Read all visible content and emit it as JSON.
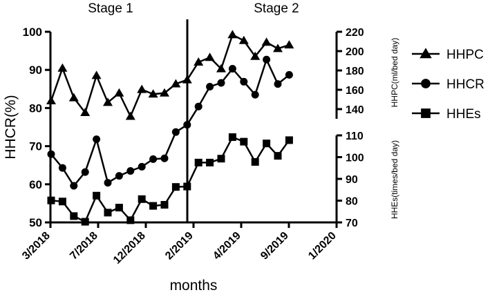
{
  "chart_data": {
    "type": "line",
    "xlabel": "months",
    "ylabel": "HHCR(%)",
    "ylabel_right_top": "HHPC(ml/bed day)",
    "ylabel_right_bottom": "HHEs(times/bed day)",
    "stages": [
      "Stage 1",
      "Stage 2"
    ],
    "x_ticks": [
      "3/2018",
      "7/2018",
      "12/2018",
      "2/2019",
      "4/2019",
      "9/2019",
      "1/2020"
    ],
    "ylim_left": [
      50,
      100
    ],
    "yticks_left": [
      50,
      60,
      70,
      80,
      90,
      100
    ],
    "ylim_right_top": [
      130,
      220
    ],
    "yticks_right_top": [
      140,
      160,
      180,
      200,
      220
    ],
    "ylim_right_bottom": [
      70,
      110
    ],
    "yticks_right_bottom": [
      70,
      80,
      90,
      100,
      110
    ],
    "legend_position": "right",
    "series": [
      {
        "name": "HHPC",
        "marker": "triangle",
        "axis": "right-top",
        "values": [
          148.6,
          182.3,
          151.7,
          136.4,
          174.7,
          146.9,
          156.6,
          132.5,
          160.3,
          155.5,
          156.6,
          166.1,
          170.3,
          188.6,
          193.4,
          181.7,
          216.9,
          210.9,
          194.5,
          209.1,
          202.6,
          206.3
        ]
      },
      {
        "name": "HHCR",
        "marker": "circle",
        "axis": "left",
        "values": [
          67.9,
          64.3,
          59.6,
          63.2,
          71.8,
          60.4,
          62.2,
          63.5,
          64.6,
          66.6,
          66.8,
          73.7,
          75.6,
          80.4,
          85.6,
          86.6,
          90.3,
          86.9,
          83.5,
          92.7,
          86.3,
          88.7
        ]
      },
      {
        "name": "HHEs",
        "marker": "square",
        "axis": "right-bottom",
        "values": [
          80.1,
          79.6,
          72.9,
          70.3,
          82.3,
          74.5,
          76.8,
          71.0,
          80.7,
          77.6,
          78.1,
          86.3,
          86.5,
          97.5,
          97.5,
          99.3,
          109.2,
          107.1,
          97.8,
          106.3,
          100.6,
          107.8
        ]
      }
    ]
  }
}
